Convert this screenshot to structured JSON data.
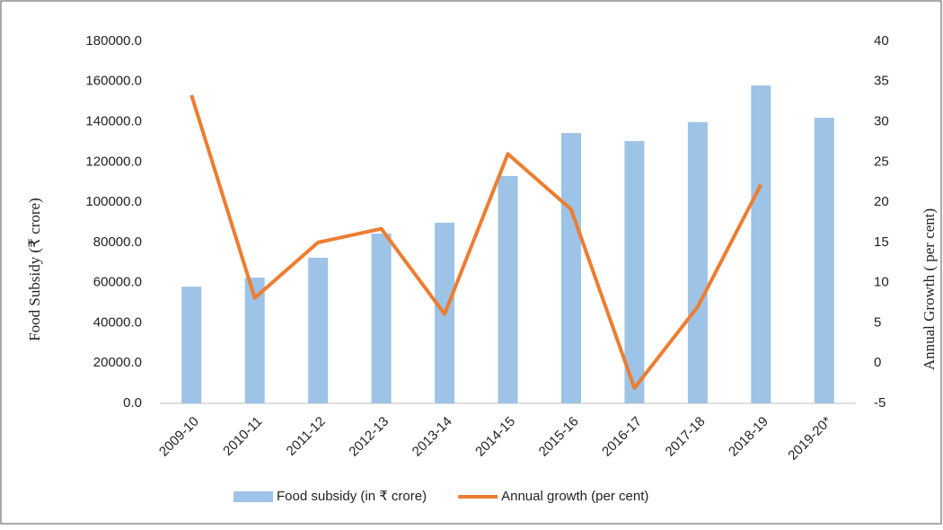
{
  "chart_data": {
    "type": "bar_line",
    "categories": [
      "2009-10",
      "2010-11",
      "2011-12",
      "2012-13",
      "2013-14",
      "2014-15",
      "2015-16",
      "2016-17",
      "2017-18",
      "2018-19",
      "2019-20*"
    ],
    "series": [
      {
        "name": "Food subsidy (in ₹ crore)",
        "type": "bar",
        "color": "#9dc3e6",
        "values": [
          58000,
          62500,
          72400,
          84400,
          89800,
          113000,
          134400,
          130400,
          139800,
          158000,
          142000
        ]
      },
      {
        "name": "Annual growth (per cent)",
        "type": "line",
        "axis": "y2",
        "color": "#ed7d31",
        "values": [
          33.3,
          8.1,
          15.0,
          16.7,
          6.1,
          26.0,
          19.1,
          -3.1,
          7.0,
          22.2,
          null
        ]
      }
    ],
    "ylabel": "Food Subsidy (₹ crore)",
    "y2label": "Annual Growth ( per cent)",
    "ylim": [
      0,
      180000
    ],
    "yticks": [
      {
        "value": 0,
        "label": "0.0"
      },
      {
        "value": 20000,
        "label": "20000.0"
      },
      {
        "value": 40000,
        "label": "40000.0"
      },
      {
        "value": 60000,
        "label": "60000.0"
      },
      {
        "value": 80000,
        "label": "80000.0"
      },
      {
        "value": 100000,
        "label": "100000.0"
      },
      {
        "value": 120000,
        "label": "120000.0"
      },
      {
        "value": 140000,
        "label": "140000.0"
      },
      {
        "value": 160000,
        "label": "160000.0"
      },
      {
        "value": 180000,
        "label": "180000.0"
      }
    ],
    "y2lim": [
      -5,
      40
    ],
    "y2ticks": [
      -5,
      0,
      5,
      10,
      15,
      20,
      25,
      30,
      35,
      40
    ],
    "legend": "bottom"
  }
}
